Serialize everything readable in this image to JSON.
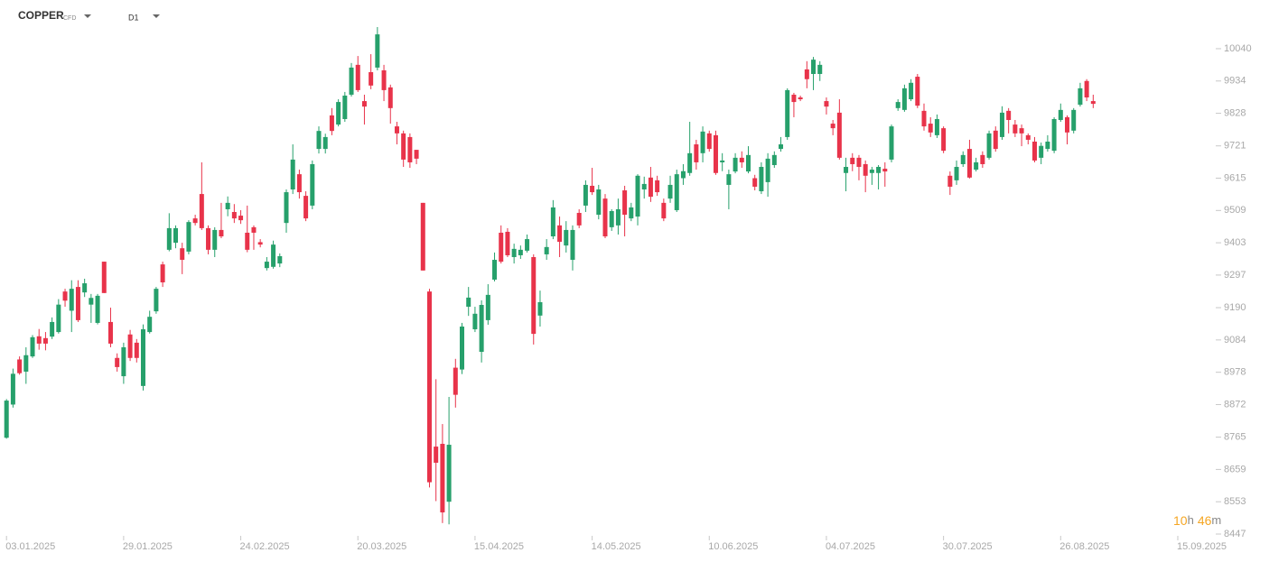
{
  "header": {
    "symbol": "COPPER",
    "instrument_type": "CFD",
    "timeframe": "D1"
  },
  "timer": {
    "hours": "10",
    "hours_unit": "h",
    "minutes": "46",
    "minutes_unit": "m"
  },
  "chart_data": {
    "type": "candlestick",
    "up_color": "#26a06b",
    "down_color": "#e8334a",
    "xlim": [
      -1,
      185
    ],
    "ylim": [
      8447,
      10185
    ],
    "xticks": [
      {
        "value": 0,
        "label": "03.01.2025"
      },
      {
        "value": 18,
        "label": "29.01.2025"
      },
      {
        "value": 36,
        "label": "24.02.2025"
      },
      {
        "value": 54,
        "label": "20.03.2025"
      },
      {
        "value": 72,
        "label": "15.04.2025"
      },
      {
        "value": 90,
        "label": "14.05.2025"
      },
      {
        "value": 108,
        "label": "10.06.2025"
      },
      {
        "value": 126,
        "label": "04.07.2025"
      },
      {
        "value": 144,
        "label": "30.07.2025"
      },
      {
        "value": 162,
        "label": "26.08.2025"
      },
      {
        "value": 180,
        "label": "15.09.2025"
      }
    ],
    "yticks": [
      10040,
      9934,
      9828,
      9721,
      9615,
      9509,
      9403,
      9297,
      9190,
      9084,
      8978,
      8872,
      8765,
      8659,
      8553,
      8447
    ],
    "open": [
      8763,
      8872,
      9020,
      8980,
      9030,
      9096,
      9090,
      9095,
      9110,
      9243,
      9180,
      9258,
      9240,
      9200,
      9140,
      9341,
      9143,
      9025,
      8965,
      9102,
      9075,
      8933,
      9110,
      9178,
      9332,
      9380,
      9403,
      9385,
      9374,
      9483,
      9563,
      9451,
      9380,
      9445,
      9513,
      9504,
      9492,
      9436,
      9454,
      9405,
      9320,
      9324,
      9335,
      9468,
      9578,
      9628,
      9557,
      9525,
      9711,
      9711,
      9821,
      9791,
      9809,
      9889,
      9987,
      9868,
      9963,
      9978,
      9969,
      9913,
      9785,
      9762,
      9750,
      9708,
      9534,
      9243,
      8734,
      8743,
      8553,
      8993,
      8987,
      9193,
      9119,
      9045,
      9149,
      9282,
      9436,
      9439,
      9356,
      9362,
      9377,
      9356,
      9164,
      9365,
      9424,
      9460,
      9394,
      9347,
      9501,
      9525,
      9590,
      9495,
      9548,
      9454,
      9460,
      9575,
      9483,
      9489,
      9578,
      9617,
      9608,
      9534,
      9548,
      9510,
      9615,
      9632,
      9726,
      9697,
      9762,
      9756,
      9667,
      9593,
      9637,
      9682,
      9637,
      9615,
      9572,
      9602,
      9658,
      9711,
      9750,
      9889,
      9880,
      9972,
      9957,
      9957,
      9868,
      9794,
      9830,
      9632,
      9682,
      9682,
      9661,
      9632,
      9632,
      9646,
      9676,
      9845,
      9839,
      9874,
      9948,
      9836,
      9794,
      9756,
      9779,
      9623,
      9608,
      9661,
      9711,
      9643,
      9691,
      9682,
      9771,
      9750,
      9836,
      9791,
      9779,
      9756,
      9735,
      9682,
      9711,
      9705,
      9806,
      9815,
      9771,
      9856,
      9934,
      9868
    ],
    "high": [
      8890,
      8990,
      9030,
      9060,
      9100,
      9120,
      9110,
      9158,
      9218,
      9252,
      9280,
      9280,
      9285,
      9235,
      9235,
      9341,
      9190,
      9040,
      9075,
      9117,
      9087,
      9135,
      9180,
      9258,
      9341,
      9500,
      9460,
      9403,
      9477,
      9495,
      9667,
      9460,
      9454,
      9534,
      9555,
      9530,
      9510,
      9525,
      9460,
      9415,
      9356,
      9410,
      9368,
      9578,
      9726,
      9643,
      9572,
      9673,
      9785,
      9761,
      9845,
      9874,
      9898,
      9993,
      10016,
      9889,
      10022,
      10111,
      9987,
      9922,
      9800,
      9771,
      9762,
      9708,
      9534,
      9252,
      8955,
      8808,
      8897,
      9022,
      9140,
      9258,
      9193,
      9214,
      9267,
      9371,
      9460,
      9451,
      9400,
      9394,
      9430,
      9365,
      9246,
      9415,
      9543,
      9489,
      9474,
      9460,
      9513,
      9608,
      9649,
      9593,
      9563,
      9513,
      9548,
      9590,
      9534,
      9628,
      9620,
      9652,
      9623,
      9548,
      9623,
      9643,
      9661,
      9800,
      9741,
      9785,
      9771,
      9771,
      9697,
      9643,
      9697,
      9703,
      9720,
      9626,
      9667,
      9697,
      9703,
      9750,
      9910,
      9895,
      9886,
      9999,
      10013,
      9999,
      9880,
      9806,
      9874,
      9682,
      9697,
      9691,
      9673,
      9652,
      9658,
      9667,
      9791,
      9874,
      9922,
      9940,
      9957,
      9860,
      9815,
      9824,
      9785,
      9637,
      9673,
      9703,
      9741,
      9682,
      9703,
      9771,
      9785,
      9851,
      9845,
      9806,
      9791,
      9762,
      9750,
      9732,
      9756,
      9815,
      9860,
      9821,
      9845,
      9928,
      9940,
      9889
    ],
    "low": [
      8760,
      8862,
      8970,
      8940,
      9025,
      9052,
      9050,
      9087,
      9105,
      9193,
      9110,
      9143,
      9225,
      9140,
      9135,
      9238,
      9060,
      8980,
      8940,
      9015,
      9010,
      8918,
      9105,
      9170,
      9258,
      9375,
      9385,
      9300,
      9365,
      9460,
      9445,
      9365,
      9356,
      9418,
      9490,
      9468,
      9465,
      9372,
      9380,
      9388,
      9312,
      9318,
      9323,
      9436,
      9563,
      9548,
      9474,
      9513,
      9696,
      9696,
      9756,
      9785,
      9800,
      9883,
      9898,
      9791,
      9907,
      9969,
      9868,
      9794,
      9726,
      9652,
      9649,
      9661,
      9312,
      8600,
      8555,
      8483,
      8479,
      8862,
      8972,
      9163,
      9110,
      9010,
      9134,
      9276,
      9335,
      9356,
      9335,
      9350,
      9371,
      9069,
      9128,
      9347,
      9415,
      9356,
      9371,
      9312,
      9451,
      9504,
      9560,
      9480,
      9418,
      9442,
      9430,
      9424,
      9474,
      9460,
      9548,
      9537,
      9557,
      9474,
      9534,
      9504,
      9593,
      9623,
      9643,
      9667,
      9702,
      9626,
      9638,
      9513,
      9631,
      9649,
      9631,
      9575,
      9563,
      9554,
      9649,
      9702,
      9741,
      9815,
      9868,
      9910,
      9904,
      9934,
      9824,
      9756,
      9676,
      9572,
      9638,
      9608,
      9569,
      9593,
      9578,
      9587,
      9667,
      9836,
      9833,
      9868,
      9845,
      9771,
      9750,
      9747,
      9697,
      9560,
      9593,
      9652,
      9614,
      9637,
      9649,
      9676,
      9702,
      9741,
      9762,
      9750,
      9720,
      9726,
      9667,
      9661,
      9702,
      9697,
      9800,
      9726,
      9762,
      9850,
      9868,
      9845
    ],
    "close": [
      8885,
      8973,
      8975,
      9034,
      9093,
      9072,
      9072,
      9143,
      9200,
      9213,
      9252,
      9149,
      9270,
      9222,
      9229,
      9238,
      9072,
      8995,
      9060,
      9025,
      9025,
      9119,
      9160,
      9252,
      9273,
      9451,
      9451,
      9347,
      9471,
      9468,
      9451,
      9380,
      9445,
      9424,
      9534,
      9483,
      9477,
      9380,
      9436,
      9397,
      9341,
      9397,
      9359,
      9569,
      9676,
      9569,
      9483,
      9661,
      9770,
      9750,
      9770,
      9865,
      9886,
      9978,
      9904,
      9850,
      9919,
      10087,
      9904,
      9845,
      9762,
      9676,
      9667,
      9679,
      9312,
      8617,
      8681,
      8518,
      8740,
      8904,
      9128,
      9223,
      9170,
      9199,
      9232,
      9347,
      9341,
      9362,
      9383,
      9380,
      9415,
      9104,
      9208,
      9389,
      9519,
      9406,
      9445,
      9445,
      9460,
      9593,
      9569,
      9578,
      9424,
      9507,
      9513,
      9495,
      9519,
      9623,
      9596,
      9554,
      9569,
      9483,
      9593,
      9628,
      9638,
      9697,
      9667,
      9768,
      9711,
      9632,
      9673,
      9628,
      9682,
      9667,
      9691,
      9587,
      9652,
      9679,
      9691,
      9726,
      9904,
      9865,
      9874,
      9940,
      10004,
      9987,
      9850,
      9779,
      9682,
      9652,
      9661,
      9652,
      9623,
      9643,
      9652,
      9637,
      9785,
      9865,
      9910,
      9928,
      9853,
      9785,
      9765,
      9809,
      9705,
      9587,
      9652,
      9691,
      9617,
      9667,
      9661,
      9762,
      9711,
      9830,
      9806,
      9762,
      9762,
      9741,
      9673,
      9721,
      9735,
      9809,
      9839,
      9765,
      9839,
      9910,
      9880,
      9859
    ]
  }
}
